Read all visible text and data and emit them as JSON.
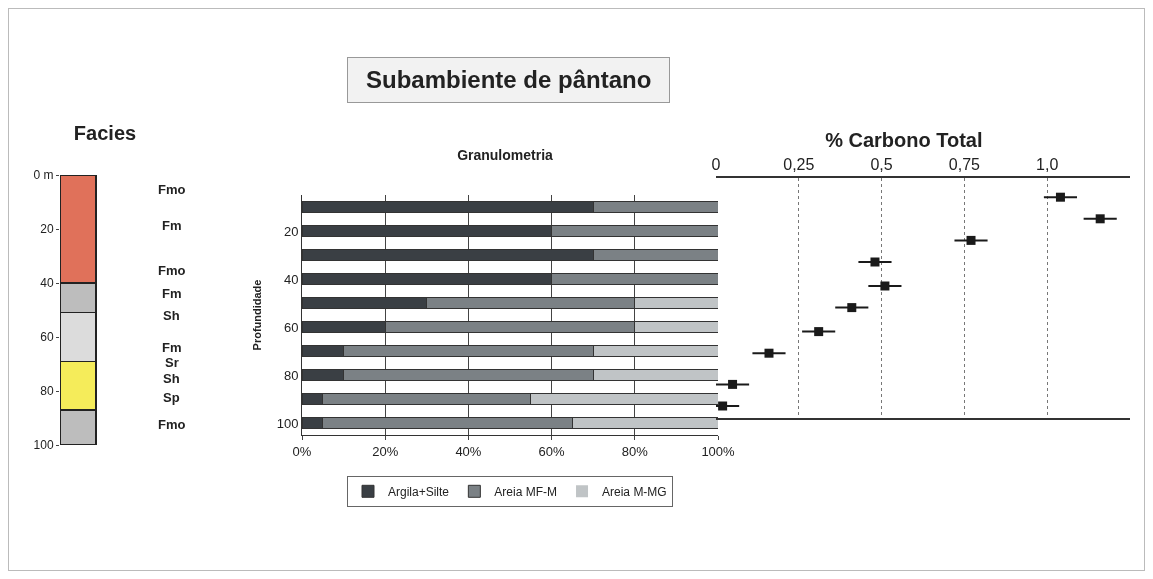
{
  "chart_data": [
    {
      "type": "other",
      "title": "Subambiente de pântano"
    },
    {
      "type": "bar",
      "stacked": true,
      "title": "Facies",
      "categories": [
        null
      ],
      "tick_labels": "y",
      "ylim": [
        100,
        0
      ],
      "series": [
        {
          "color": "#e0715a",
          "values": [
            40
          ]
        },
        {
          "color": "#bdbdbd",
          "values": [
            11
          ]
        },
        {
          "color": "#dcdcdc",
          "values": [
            18
          ]
        },
        {
          "color": "#f5ec5a",
          "values": [
            18
          ]
        },
        {
          "color": "#bdbdbd",
          "values": [
            13
          ]
        }
      ],
      "yticks": [
        {
          "value": 0,
          "label": "0 m"
        },
        20,
        40,
        60,
        80,
        100
      ],
      "annotations": [
        "Fmo",
        "Fm",
        "Fmo",
        "Fm",
        "Sh",
        "Fm",
        "Sr",
        "Sh",
        "Sp",
        "Fmo"
      ]
    },
    {
      "type": "bar",
      "orientation": "horizontal",
      "stacked": true,
      "title": "Granulometria",
      "ylabel": "Profundidade",
      "categories": [
        null,
        "20",
        null,
        "40",
        null,
        "60",
        null,
        "80",
        null,
        "100"
      ],
      "xlim": [
        0,
        100
      ],
      "xticks": [
        {
          "value": 0,
          "label": "0%"
        },
        {
          "value": 20,
          "label": "20%"
        },
        {
          "value": 40,
          "label": "40%"
        },
        {
          "value": 60,
          "label": "60%"
        },
        {
          "value": 80,
          "label": "80%"
        },
        {
          "value": 100,
          "label": "100%"
        }
      ],
      "grid": "x",
      "legend": "bottom",
      "series": [
        {
          "name": "Argila+Silte",
          "color": "#3a3f44",
          "values": [
            70,
            60,
            70,
            60,
            30,
            20,
            10,
            10,
            5,
            5
          ]
        },
        {
          "name": "Areia MF-M",
          "color": "#7b8185",
          "values": [
            30,
            40,
            30,
            40,
            50,
            60,
            60,
            60,
            50,
            60
          ]
        },
        {
          "name": "Areia M-MG",
          "color": "#c0c4c6",
          "values": [
            0,
            0,
            0,
            0,
            20,
            20,
            30,
            30,
            45,
            35
          ]
        }
      ]
    },
    {
      "type": "scatter",
      "title": "% Carbono Total",
      "x": [
        1.04,
        1.16,
        0.77,
        0.48,
        0.51,
        0.41,
        0.31,
        0.16,
        0.05,
        0.02
      ],
      "values": [
        8,
        17,
        26,
        35,
        45,
        54,
        64,
        73,
        86,
        95
      ],
      "xerrors": [
        0.05,
        0.05,
        0.05,
        0.05,
        0.05,
        0.05,
        0.05,
        0.05,
        0.05,
        0.05
      ],
      "color": "#1a1a1a",
      "marker": "square",
      "xlim": [
        0,
        1.25
      ],
      "xticks": [
        0,
        {
          "value": 0.25,
          "label": "0,25"
        },
        {
          "value": 0.5,
          "label": "0,5"
        },
        {
          "value": 0.75,
          "label": "0,75"
        },
        {
          "value": 1,
          "label": "1,0"
        }
      ],
      "ylim": [
        100,
        0
      ],
      "tick_labels": "x",
      "grid": "x"
    }
  ]
}
